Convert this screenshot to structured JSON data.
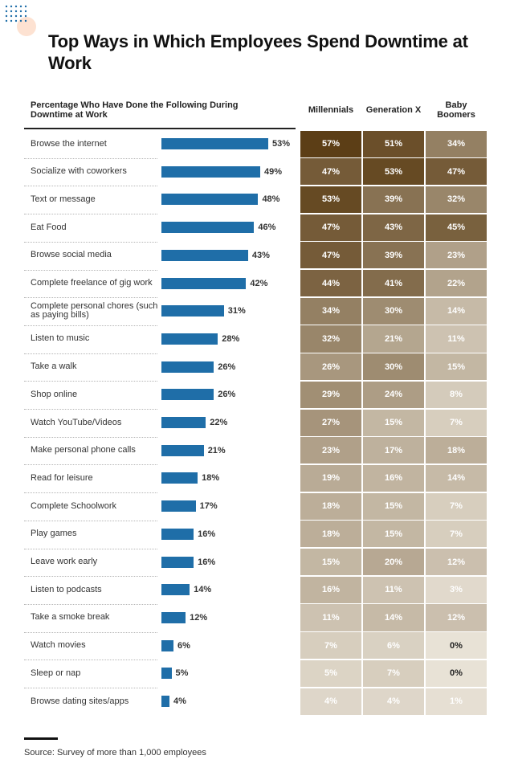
{
  "title": "Top Ways in Which Employees Spend Downtime at Work",
  "subhead": "Percentage Who Have Done the Following During Downtime at Work",
  "source": "Source: Survey of more than 1,000 employees",
  "colors": {
    "bar": "#1f6ea8",
    "accent": "#fde2d2",
    "dots": "#1f6ea8"
  },
  "chart_data": {
    "type": "bar",
    "categories": [
      "Browse the internet",
      "Socialize with coworkers",
      "Text or message",
      "Eat Food",
      "Browse social media",
      "Complete freelance of gig work",
      "Complete personal chores (such as paying bills)",
      "Listen to music",
      "Take a walk",
      "Shop online",
      "Watch YouTube/Videos",
      "Make personal phone calls",
      "Read for leisure",
      "Complete Schoolwork",
      "Play games",
      "Leave work early",
      "Listen to podcasts",
      "Take a smoke break",
      "Watch movies",
      "Sleep or nap",
      "Browse dating sites/apps"
    ],
    "values": [
      53,
      49,
      48,
      46,
      43,
      42,
      31,
      28,
      26,
      26,
      22,
      21,
      18,
      17,
      16,
      16,
      14,
      12,
      6,
      5,
      4
    ],
    "value_format": "{}%",
    "xlim": [
      0,
      53
    ],
    "table": {
      "columns": [
        "Millennials",
        "Generation X",
        "Baby Boomers"
      ],
      "rows": [
        [
          57,
          51,
          34
        ],
        [
          47,
          53,
          47
        ],
        [
          53,
          39,
          32
        ],
        [
          47,
          43,
          45
        ],
        [
          47,
          39,
          23
        ],
        [
          44,
          41,
          22
        ],
        [
          34,
          30,
          14
        ],
        [
          32,
          21,
          11
        ],
        [
          26,
          30,
          15
        ],
        [
          29,
          24,
          8
        ],
        [
          27,
          15,
          7
        ],
        [
          23,
          17,
          18
        ],
        [
          19,
          16,
          14
        ],
        [
          18,
          15,
          7
        ],
        [
          18,
          15,
          7
        ],
        [
          15,
          20,
          12
        ],
        [
          16,
          11,
          3
        ],
        [
          11,
          14,
          12
        ],
        [
          7,
          6,
          0
        ],
        [
          5,
          7,
          0
        ],
        [
          4,
          4,
          1
        ]
      ]
    }
  }
}
